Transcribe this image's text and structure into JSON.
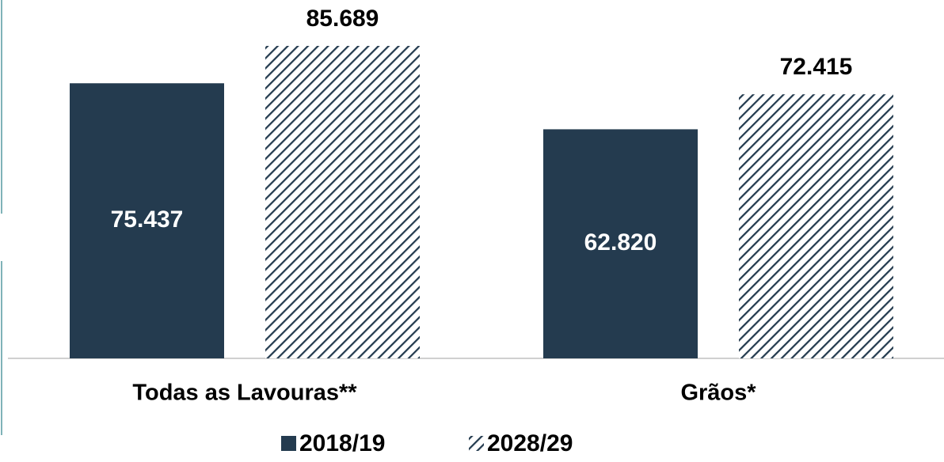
{
  "chart_data": {
    "type": "bar",
    "categories": [
      "Todas as Lavouras**",
      "Grãos*"
    ],
    "series": [
      {
        "name": "2018/19",
        "color": "#243b4f",
        "fill": "solid",
        "values": [
          75437,
          62820
        ],
        "value_labels": [
          "75.437",
          "62.820"
        ]
      },
      {
        "name": "2028/29",
        "color": "#243b4f",
        "fill": "hatch",
        "values": [
          85689,
          72415
        ],
        "value_labels": [
          "85.689",
          "72.415"
        ]
      }
    ],
    "legend": "bottom"
  }
}
